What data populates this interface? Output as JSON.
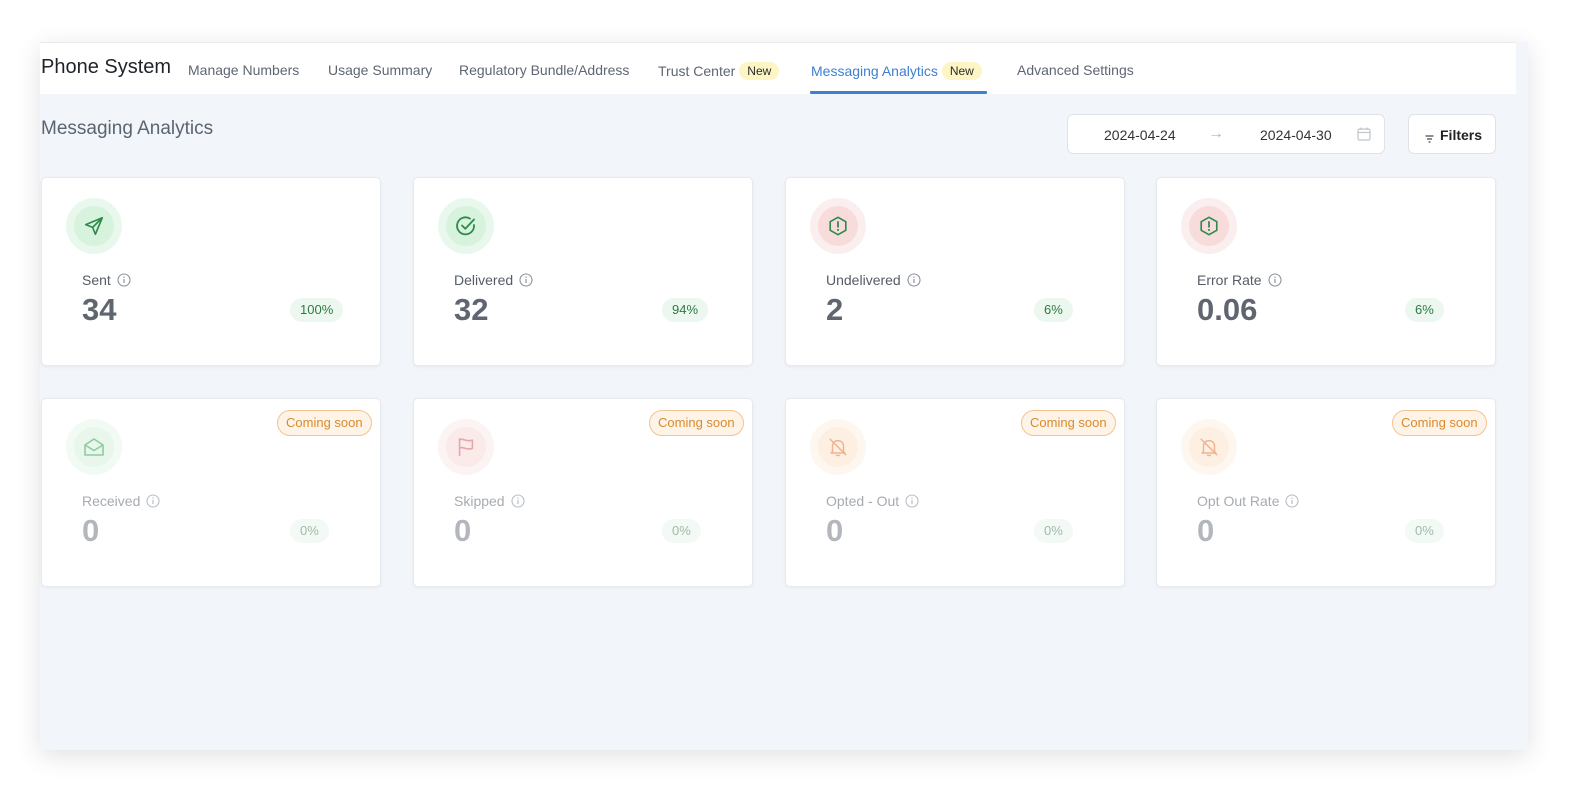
{
  "header": {
    "app_title": "Phone System",
    "tabs": [
      {
        "label": "Manage Numbers",
        "badge": ""
      },
      {
        "label": "Usage Summary",
        "badge": ""
      },
      {
        "label": "Regulatory Bundle/Address",
        "badge": ""
      },
      {
        "label": "Trust Center",
        "badge": "New"
      },
      {
        "label": "Messaging Analytics",
        "badge": "New",
        "active": true
      },
      {
        "label": "Advanced Settings",
        "badge": ""
      }
    ]
  },
  "page": {
    "heading": "Messaging Analytics",
    "date_start": "2024-04-24",
    "date_arrow": "→",
    "date_end": "2024-04-30",
    "filters_label": "Filters"
  },
  "cards": [
    {
      "label": "Sent",
      "value": "34",
      "percent": "100%",
      "icon": "send-icon"
    },
    {
      "label": "Delivered",
      "value": "32",
      "percent": "94%",
      "icon": "check-circle-icon"
    },
    {
      "label": "Undelivered",
      "value": "2",
      "percent": "6%",
      "icon": "alert-hexagon-icon"
    },
    {
      "label": "Error Rate",
      "value": "0.06",
      "percent": "6%",
      "icon": "alert-hexagon-icon"
    },
    {
      "label": "Received",
      "value": "0",
      "percent": "0%",
      "icon": "envelope-open-icon",
      "tag": "Coming soon"
    },
    {
      "label": "Skipped",
      "value": "0",
      "percent": "0%",
      "icon": "flag-icon",
      "tag": "Coming soon"
    },
    {
      "label": "Opted - Out",
      "value": "0",
      "percent": "0%",
      "icon": "bell-off-icon",
      "tag": "Coming soon"
    },
    {
      "label": "Opt Out Rate",
      "value": "0",
      "percent": "0%",
      "icon": "bell-off-icon",
      "tag": "Coming soon"
    }
  ],
  "colors": {
    "accent": "#3f7fd1",
    "success": "#2c7a43",
    "warning": "#d98a2f",
    "background": "#f2f5f9"
  }
}
